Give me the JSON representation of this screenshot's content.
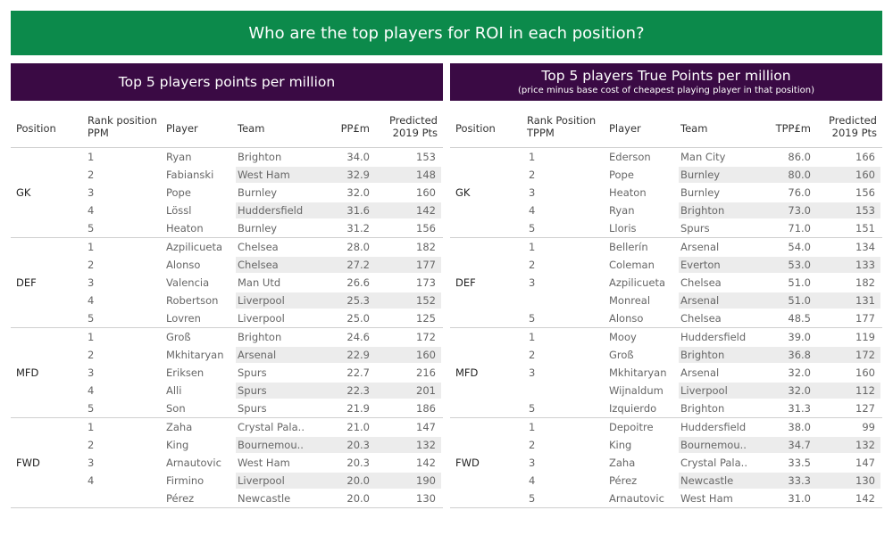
{
  "banner": {
    "title": "Who are the top players for ROI in each position?"
  },
  "left": {
    "title": "Top 5 players points per million",
    "subtitle": "",
    "columns": {
      "position": "Position",
      "rank_line1": "Rank position",
      "rank_line2": "PPM",
      "player": "Player",
      "team": "Team",
      "value": "PP£m",
      "pred_line1": "Predicted",
      "pred_line2": "2019 Pts"
    }
  },
  "right": {
    "title": "Top 5 players True Points per million",
    "subtitle": "(price minus base cost of cheapest playing player in that position)",
    "columns": {
      "position": "Position",
      "rank_line1": "Rank Position",
      "rank_line2": "TPPM",
      "player": "Player",
      "team": "Team",
      "value": "TPP£m",
      "pred_line1": "Predicted",
      "pred_line2": "2019 Pts"
    }
  },
  "chart_data": [
    {
      "type": "table",
      "title": "Top 5 players points per million",
      "groups": [
        {
          "position": "GK",
          "rows": [
            {
              "rank": "1",
              "player": "Ryan",
              "team": "Brighton",
              "value": "34.0",
              "predicted": "153"
            },
            {
              "rank": "2",
              "player": "Fabianski",
              "team": "West Ham",
              "value": "32.9",
              "predicted": "148"
            },
            {
              "rank": "3",
              "player": "Pope",
              "team": "Burnley",
              "value": "32.0",
              "predicted": "160"
            },
            {
              "rank": "4",
              "player": "Lössl",
              "team": "Huddersfield",
              "value": "31.6",
              "predicted": "142"
            },
            {
              "rank": "5",
              "player": "Heaton",
              "team": "Burnley",
              "value": "31.2",
              "predicted": "156"
            }
          ]
        },
        {
          "position": "DEF",
          "rows": [
            {
              "rank": "1",
              "player": "Azpilicueta",
              "team": "Chelsea",
              "value": "28.0",
              "predicted": "182"
            },
            {
              "rank": "2",
              "player": "Alonso",
              "team": "Chelsea",
              "value": "27.2",
              "predicted": "177"
            },
            {
              "rank": "3",
              "player": "Valencia",
              "team": "Man Utd",
              "value": "26.6",
              "predicted": "173"
            },
            {
              "rank": "4",
              "player": "Robertson",
              "team": "Liverpool",
              "value": "25.3",
              "predicted": "152"
            },
            {
              "rank": "5",
              "player": "Lovren",
              "team": "Liverpool",
              "value": "25.0",
              "predicted": "125"
            }
          ]
        },
        {
          "position": "MFD",
          "rows": [
            {
              "rank": "1",
              "player": "Groß",
              "team": "Brighton",
              "value": "24.6",
              "predicted": "172"
            },
            {
              "rank": "2",
              "player": "Mkhitaryan",
              "team": "Arsenal",
              "value": "22.9",
              "predicted": "160"
            },
            {
              "rank": "3",
              "player": "Eriksen",
              "team": "Spurs",
              "value": "22.7",
              "predicted": "216"
            },
            {
              "rank": "4",
              "player": "Alli",
              "team": "Spurs",
              "value": "22.3",
              "predicted": "201"
            },
            {
              "rank": "5",
              "player": "Son",
              "team": "Spurs",
              "value": "21.9",
              "predicted": "186"
            }
          ]
        },
        {
          "position": "FWD",
          "rows": [
            {
              "rank": "1",
              "player": "Zaha",
              "team": "Crystal Pala..",
              "value": "21.0",
              "predicted": "147"
            },
            {
              "rank": "2",
              "player": "King",
              "team": "Bournemou..",
              "value": "20.3",
              "predicted": "132"
            },
            {
              "rank": "3",
              "player": "Arnautovic",
              "team": "West Ham",
              "value": "20.3",
              "predicted": "142"
            },
            {
              "rank": "4",
              "player": "Firmino",
              "team": "Liverpool",
              "value": "20.0",
              "predicted": "190"
            },
            {
              "rank": "",
              "player": "Pérez",
              "team": "Newcastle",
              "value": "20.0",
              "predicted": "130"
            }
          ]
        }
      ]
    },
    {
      "type": "table",
      "title": "Top 5 players True Points per million",
      "groups": [
        {
          "position": "GK",
          "rows": [
            {
              "rank": "1",
              "player": "Ederson",
              "team": "Man City",
              "value": "86.0",
              "predicted": "166"
            },
            {
              "rank": "2",
              "player": "Pope",
              "team": "Burnley",
              "value": "80.0",
              "predicted": "160"
            },
            {
              "rank": "3",
              "player": "Heaton",
              "team": "Burnley",
              "value": "76.0",
              "predicted": "156"
            },
            {
              "rank": "4",
              "player": "Ryan",
              "team": "Brighton",
              "value": "73.0",
              "predicted": "153"
            },
            {
              "rank": "5",
              "player": "Lloris",
              "team": "Spurs",
              "value": "71.0",
              "predicted": "151"
            }
          ]
        },
        {
          "position": "DEF",
          "rows": [
            {
              "rank": "1",
              "player": "Bellerín",
              "team": "Arsenal",
              "value": "54.0",
              "predicted": "134"
            },
            {
              "rank": "2",
              "player": "Coleman",
              "team": "Everton",
              "value": "53.0",
              "predicted": "133"
            },
            {
              "rank": "3",
              "player": "Azpilicueta",
              "team": "Chelsea",
              "value": "51.0",
              "predicted": "182"
            },
            {
              "rank": "",
              "player": "Monreal",
              "team": "Arsenal",
              "value": "51.0",
              "predicted": "131"
            },
            {
              "rank": "5",
              "player": "Alonso",
              "team": "Chelsea",
              "value": "48.5",
              "predicted": "177"
            }
          ]
        },
        {
          "position": "MFD",
          "rows": [
            {
              "rank": "1",
              "player": "Mooy",
              "team": "Huddersfield",
              "value": "39.0",
              "predicted": "119"
            },
            {
              "rank": "2",
              "player": "Groß",
              "team": "Brighton",
              "value": "36.8",
              "predicted": "172"
            },
            {
              "rank": "3",
              "player": "Mkhitaryan",
              "team": "Arsenal",
              "value": "32.0",
              "predicted": "160"
            },
            {
              "rank": "",
              "player": "Wijnaldum",
              "team": "Liverpool",
              "value": "32.0",
              "predicted": "112"
            },
            {
              "rank": "5",
              "player": "Izquierdo",
              "team": "Brighton",
              "value": "31.3",
              "predicted": "127"
            }
          ]
        },
        {
          "position": "FWD",
          "rows": [
            {
              "rank": "1",
              "player": "Depoitre",
              "team": "Huddersfield",
              "value": "38.0",
              "predicted": "99"
            },
            {
              "rank": "2",
              "player": "King",
              "team": "Bournemou..",
              "value": "34.7",
              "predicted": "132"
            },
            {
              "rank": "3",
              "player": "Zaha",
              "team": "Crystal Pala..",
              "value": "33.5",
              "predicted": "147"
            },
            {
              "rank": "4",
              "player": "Pérez",
              "team": "Newcastle",
              "value": "33.3",
              "predicted": "130"
            },
            {
              "rank": "5",
              "player": "Arnautovic",
              "team": "West Ham",
              "value": "31.0",
              "predicted": "142"
            }
          ]
        }
      ]
    }
  ]
}
